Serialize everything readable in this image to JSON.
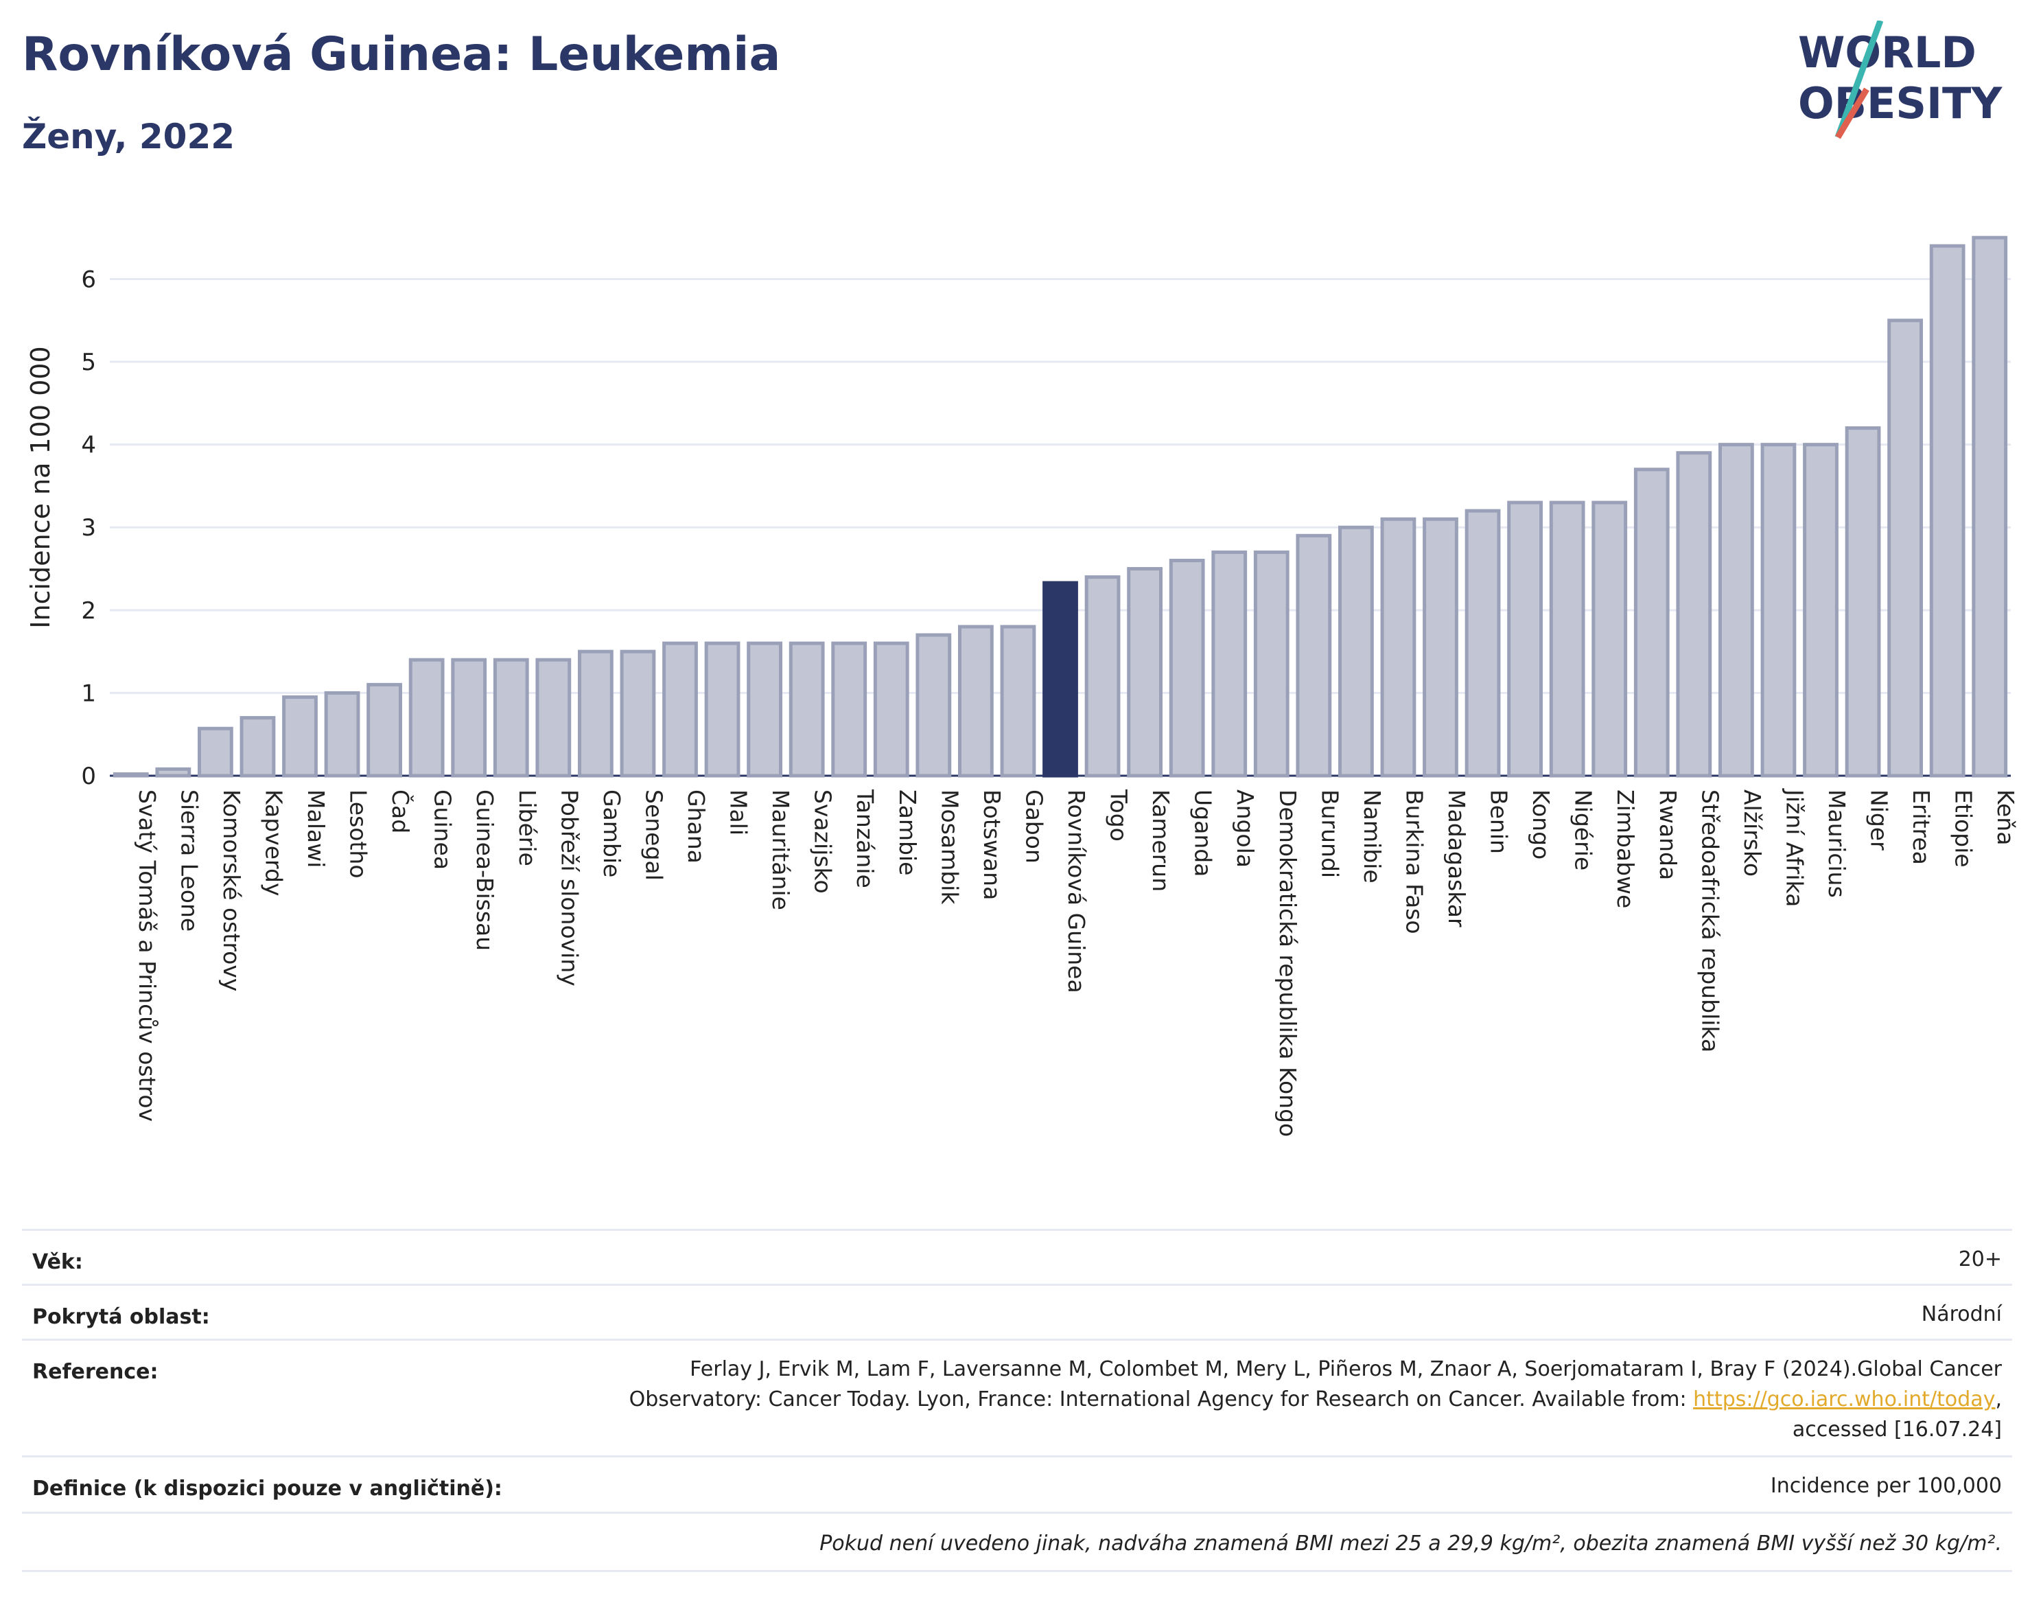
{
  "header": {
    "title": "Rovníková Guinea: Leukemia",
    "subtitle": "Ženy, 2022"
  },
  "logo": {
    "line1": "WORLD",
    "line2": "OBESITY",
    "accent_color": "#e0604f",
    "accent2_color": "#3bb5b0"
  },
  "colors": {
    "highlight": "#2b3766",
    "bar_fill": "#c2c6d4",
    "bar_stroke": "#9aa0b8",
    "grid": "#e6e9f2"
  },
  "chart_data": {
    "type": "bar",
    "ylabel": "Incidence na 100 000",
    "ylim": [
      0,
      6.8
    ],
    "yticks": [
      0,
      1,
      2,
      3,
      4,
      5,
      6
    ],
    "highlight": "Rovníková Guinea",
    "categories": [
      "Svatý Tomáš a Princův ostrov",
      "Sierra Leone",
      "Komorské ostrovy",
      "Kapverdy",
      "Malawi",
      "Lesotho",
      "Čad",
      "Guinea",
      "Guinea-Bissau",
      "Libérie",
      "Pobřeží slonoviny",
      "Gambie",
      "Senegal",
      "Ghana",
      "Mali",
      "Mauritánie",
      "Svazijsko",
      "Tanzánie",
      "Zambie",
      "Mosambik",
      "Botswana",
      "Gabon",
      "Rovníková Guinea",
      "Togo",
      "Kamerun",
      "Uganda",
      "Angola",
      "Demokratická republika Kongo",
      "Burundi",
      "Namibie",
      "Burkina Faso",
      "Madagaskar",
      "Benin",
      "Kongo",
      "Nigérie",
      "Zimbabwe",
      "Rwanda",
      "Středoafrická republika",
      "Alžírsko",
      "Jižní Afrika",
      "Mauricius",
      "Niger",
      "Eritrea",
      "Etiopie",
      "Keňa"
    ],
    "values": [
      0.02,
      0.08,
      0.57,
      0.7,
      0.95,
      1.0,
      1.1,
      1.4,
      1.4,
      1.4,
      1.4,
      1.5,
      1.5,
      1.6,
      1.6,
      1.6,
      1.6,
      1.6,
      1.6,
      1.7,
      1.8,
      1.8,
      2.33,
      2.4,
      2.5,
      2.6,
      2.7,
      2.7,
      2.9,
      3.0,
      3.1,
      3.1,
      3.2,
      3.3,
      3.3,
      3.3,
      3.7,
      3.9,
      4.0,
      4.0,
      4.0,
      4.2,
      5.5,
      6.4,
      6.5
    ]
  },
  "info": {
    "age_label": "Věk:",
    "age_value": "20+",
    "area_label": "Pokrytá oblast:",
    "area_value": "Národní",
    "ref_label": "Reference:",
    "ref_line1": "Ferlay J, Ervik M, Lam F, Laversanne M, Colombet M, Mery L, Piñeros M, Znaor A, Soerjomataram I, Bray F (2024).Global Cancer",
    "ref_line2": "Observatory: Cancer Today. Lyon, France: International Agency for Research on Cancer. Available from: ",
    "ref_link": "https://gco.iarc.who.int/today",
    "ref_after_link": ",",
    "ref_line3": "accessed [16.07.24]",
    "def_label": "Definice (k dispozici pouze v angličtině):",
    "def_value": "Incidence per 100,000",
    "footnote": "Pokud není uvedeno jinak, nadváha znamená BMI mezi 25 a 29,9 kg/m², obezita znamená BMI vyšší než 30 kg/m²."
  }
}
